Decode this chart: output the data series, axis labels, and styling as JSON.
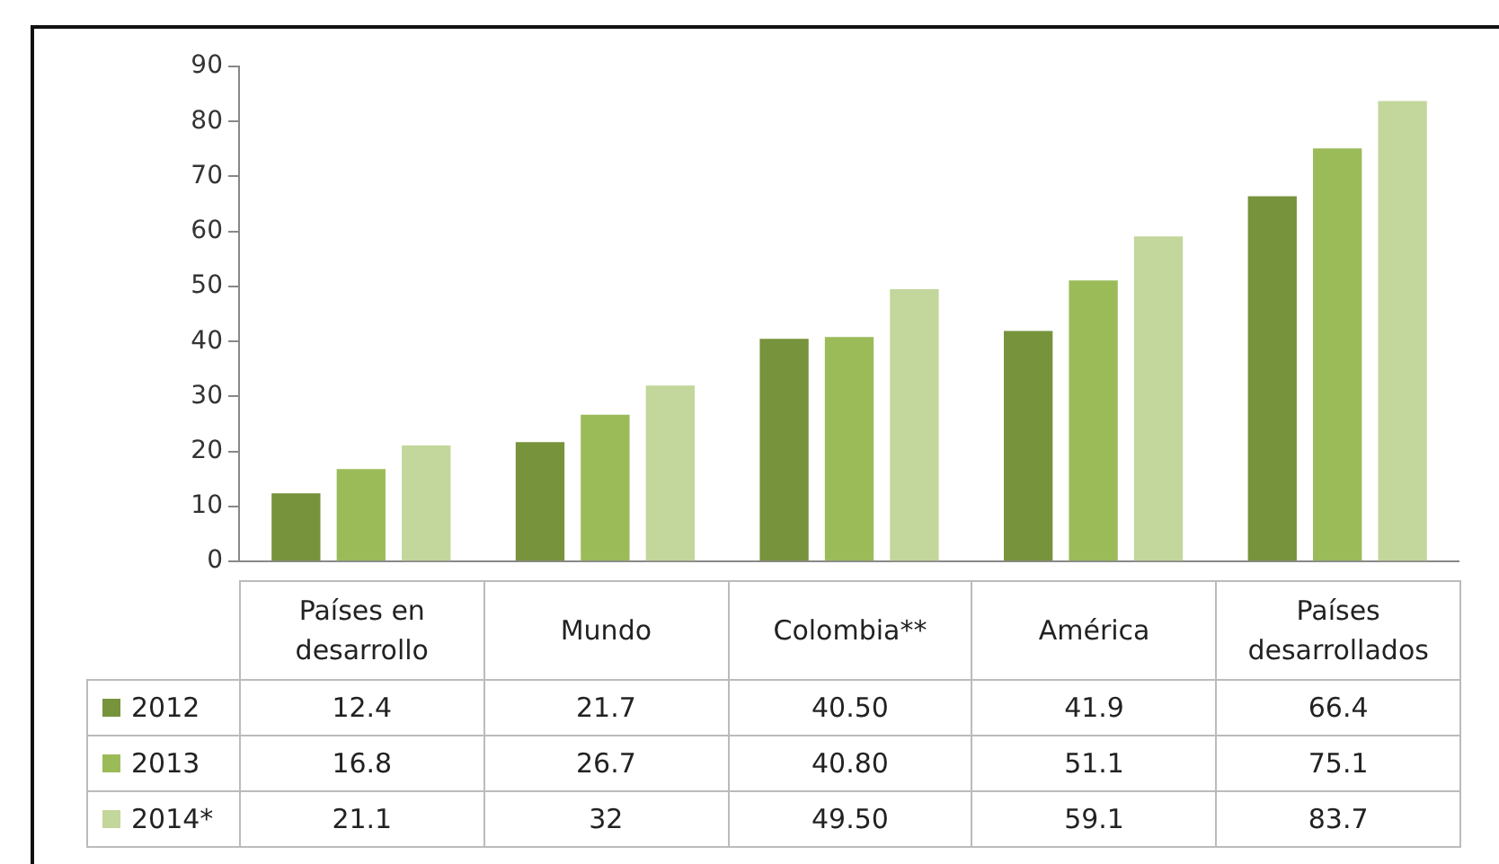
{
  "chart_data": {
    "type": "bar",
    "categories": [
      "Países en desarrollo",
      "Mundo",
      "Colombia**",
      "América",
      "Países desarrollados"
    ],
    "series": [
      {
        "name": "2012",
        "color": "#77933c",
        "values": [
          12.4,
          21.7,
          40.5,
          41.9,
          66.4
        ],
        "value_labels": [
          "12.4",
          "21.7",
          "40.50",
          "41.9",
          "66.4"
        ]
      },
      {
        "name": "2013",
        "color": "#9bbb59",
        "values": [
          16.8,
          26.7,
          40.8,
          51.1,
          75.1
        ],
        "value_labels": [
          "16.8",
          "26.7",
          "40.80",
          "51.1",
          "75.1"
        ]
      },
      {
        "name": "2014*",
        "color": "#c3d69b",
        "values": [
          21.1,
          32,
          49.5,
          59.1,
          83.7
        ],
        "value_labels": [
          "21.1",
          "32",
          "49.50",
          "59.1",
          "83.7"
        ]
      }
    ],
    "ylim": [
      0,
      90
    ],
    "yticks": [
      0,
      10,
      20,
      30,
      40,
      50,
      60,
      70,
      80,
      90
    ],
    "grid": false,
    "legend": "bottom"
  }
}
